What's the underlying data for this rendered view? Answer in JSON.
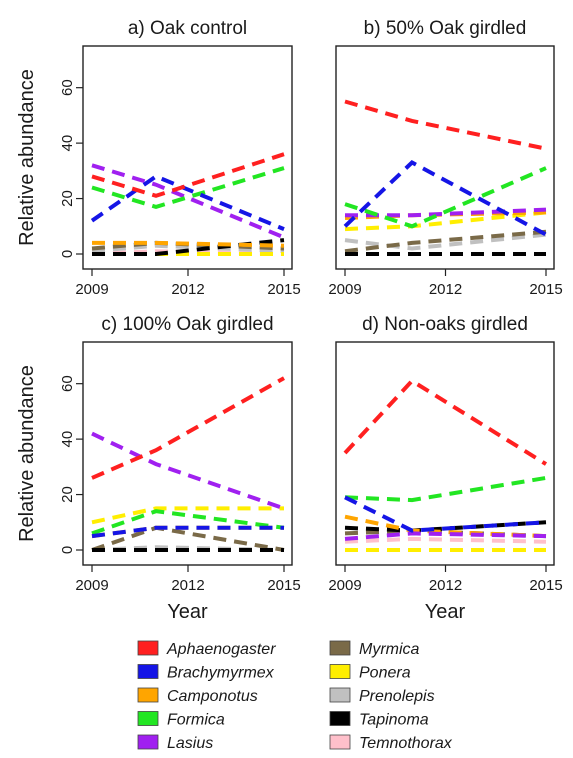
{
  "chart_data": [
    {
      "type": "line",
      "title": "a) Oak control",
      "ylabel": "Relative abundance",
      "xlabel": "",
      "x": [
        2009,
        2011,
        2015
      ],
      "xticks": [
        "2009",
        "2012",
        "2015"
      ],
      "yticks": [
        "0",
        "20",
        "40",
        "60"
      ],
      "xlim": [
        2009,
        2015
      ],
      "ylim": [
        0,
        70
      ],
      "series": [
        {
          "name": "Aphaenogaster",
          "values": [
            28,
            21,
            36
          ]
        },
        {
          "name": "Brachymyrmex",
          "values": [
            12,
            28,
            9
          ]
        },
        {
          "name": "Camponotus",
          "values": [
            4,
            4,
            3
          ]
        },
        {
          "name": "Formica",
          "values": [
            24,
            17,
            31
          ]
        },
        {
          "name": "Lasius",
          "values": [
            32,
            25,
            6
          ]
        },
        {
          "name": "Myrmica",
          "values": [
            2,
            4,
            2
          ]
        },
        {
          "name": "Ponera",
          "values": [
            0,
            0,
            0
          ]
        },
        {
          "name": "Prenolepis",
          "values": [
            1,
            3,
            1
          ]
        },
        {
          "name": "Tapinoma",
          "values": [
            0,
            0,
            5
          ]
        },
        {
          "name": "Temnothorax",
          "values": [
            0,
            1,
            0
          ]
        }
      ]
    },
    {
      "type": "line",
      "title": "b) 50% Oak girdled",
      "ylabel": "",
      "xlabel": "",
      "x": [
        2009,
        2011,
        2015
      ],
      "xticks": [
        "2009",
        "2012",
        "2015"
      ],
      "yticks": [],
      "xlim": [
        2009,
        2015
      ],
      "ylim": [
        0,
        70
      ],
      "series": [
        {
          "name": "Aphaenogaster",
          "values": [
            55,
            48,
            38
          ]
        },
        {
          "name": "Brachymyrmex",
          "values": [
            10,
            33,
            7
          ]
        },
        {
          "name": "Camponotus",
          "values": [
            13,
            14,
            15
          ]
        },
        {
          "name": "Formica",
          "values": [
            18,
            10,
            31
          ]
        },
        {
          "name": "Lasius",
          "values": [
            14,
            14,
            16
          ]
        },
        {
          "name": "Myrmica",
          "values": [
            1,
            4,
            8
          ]
        },
        {
          "name": "Ponera",
          "values": [
            9,
            10,
            15
          ]
        },
        {
          "name": "Prenolepis",
          "values": [
            5,
            2,
            7
          ]
        },
        {
          "name": "Tapinoma",
          "values": [
            0,
            0,
            0
          ]
        },
        {
          "name": "Temnothorax",
          "values": [
            0,
            0,
            0
          ]
        }
      ]
    },
    {
      "type": "line",
      "title": "c) 100% Oak girdled",
      "ylabel": "Relative abundance",
      "xlabel": "Year",
      "x": [
        2009,
        2011,
        2015
      ],
      "xticks": [
        "2009",
        "2012",
        "2015"
      ],
      "yticks": [
        "0",
        "20",
        "40",
        "60"
      ],
      "xlim": [
        2009,
        2015
      ],
      "ylim": [
        0,
        70
      ],
      "series": [
        {
          "name": "Aphaenogaster",
          "values": [
            26,
            36,
            62
          ]
        },
        {
          "name": "Brachymyrmex",
          "values": [
            5,
            8,
            8
          ]
        },
        {
          "name": "Camponotus",
          "values": [
            5,
            8,
            8
          ]
        },
        {
          "name": "Formica",
          "values": [
            6,
            14,
            8
          ]
        },
        {
          "name": "Lasius",
          "values": [
            42,
            31,
            15
          ]
        },
        {
          "name": "Myrmica",
          "values": [
            0,
            8,
            0
          ]
        },
        {
          "name": "Ponera",
          "values": [
            10,
            15,
            15
          ]
        },
        {
          "name": "Prenolepis",
          "values": [
            0,
            1,
            0
          ]
        },
        {
          "name": "Tapinoma",
          "values": [
            0,
            0,
            0
          ]
        },
        {
          "name": "Temnothorax",
          "values": [
            0,
            0,
            0
          ]
        }
      ]
    },
    {
      "type": "line",
      "title": "d) Non-oaks girdled",
      "ylabel": "",
      "xlabel": "Year",
      "x": [
        2009,
        2011,
        2015
      ],
      "xticks": [
        "2009",
        "2012",
        "2015"
      ],
      "yticks": [],
      "xlim": [
        2009,
        2015
      ],
      "ylim": [
        0,
        70
      ],
      "series": [
        {
          "name": "Aphaenogaster",
          "values": [
            35,
            61,
            31
          ]
        },
        {
          "name": "Brachymyrmex",
          "values": [
            19,
            7,
            10
          ]
        },
        {
          "name": "Camponotus",
          "values": [
            12,
            7,
            5
          ]
        },
        {
          "name": "Formica",
          "values": [
            19,
            18,
            26
          ]
        },
        {
          "name": "Lasius",
          "values": [
            4,
            6,
            5
          ]
        },
        {
          "name": "Myrmica",
          "values": [
            6,
            7,
            5
          ]
        },
        {
          "name": "Ponera",
          "values": [
            0,
            0,
            0
          ]
        },
        {
          "name": "Prenolepis",
          "values": [
            0,
            0,
            0
          ]
        },
        {
          "name": "Tapinoma",
          "values": [
            8,
            7,
            10
          ]
        },
        {
          "name": "Temnothorax",
          "values": [
            3,
            4,
            3
          ]
        }
      ]
    }
  ],
  "legend": {
    "placement": "bottom",
    "items": [
      {
        "name": "Aphaenogaster",
        "color": "#ff2020"
      },
      {
        "name": "Brachymyrmex",
        "color": "#1515e6"
      },
      {
        "name": "Camponotus",
        "color": "#ffa500"
      },
      {
        "name": "Formica",
        "color": "#22e622"
      },
      {
        "name": "Lasius",
        "color": "#a020f0"
      },
      {
        "name": "Myrmica",
        "color": "#7a6a48"
      },
      {
        "name": "Ponera",
        "color": "#ffee00"
      },
      {
        "name": "Prenolepis",
        "color": "#c0c0c0"
      },
      {
        "name": "Tapinoma",
        "color": "#000000"
      },
      {
        "name": "Temnothorax",
        "color": "#ffc0cb"
      }
    ]
  }
}
